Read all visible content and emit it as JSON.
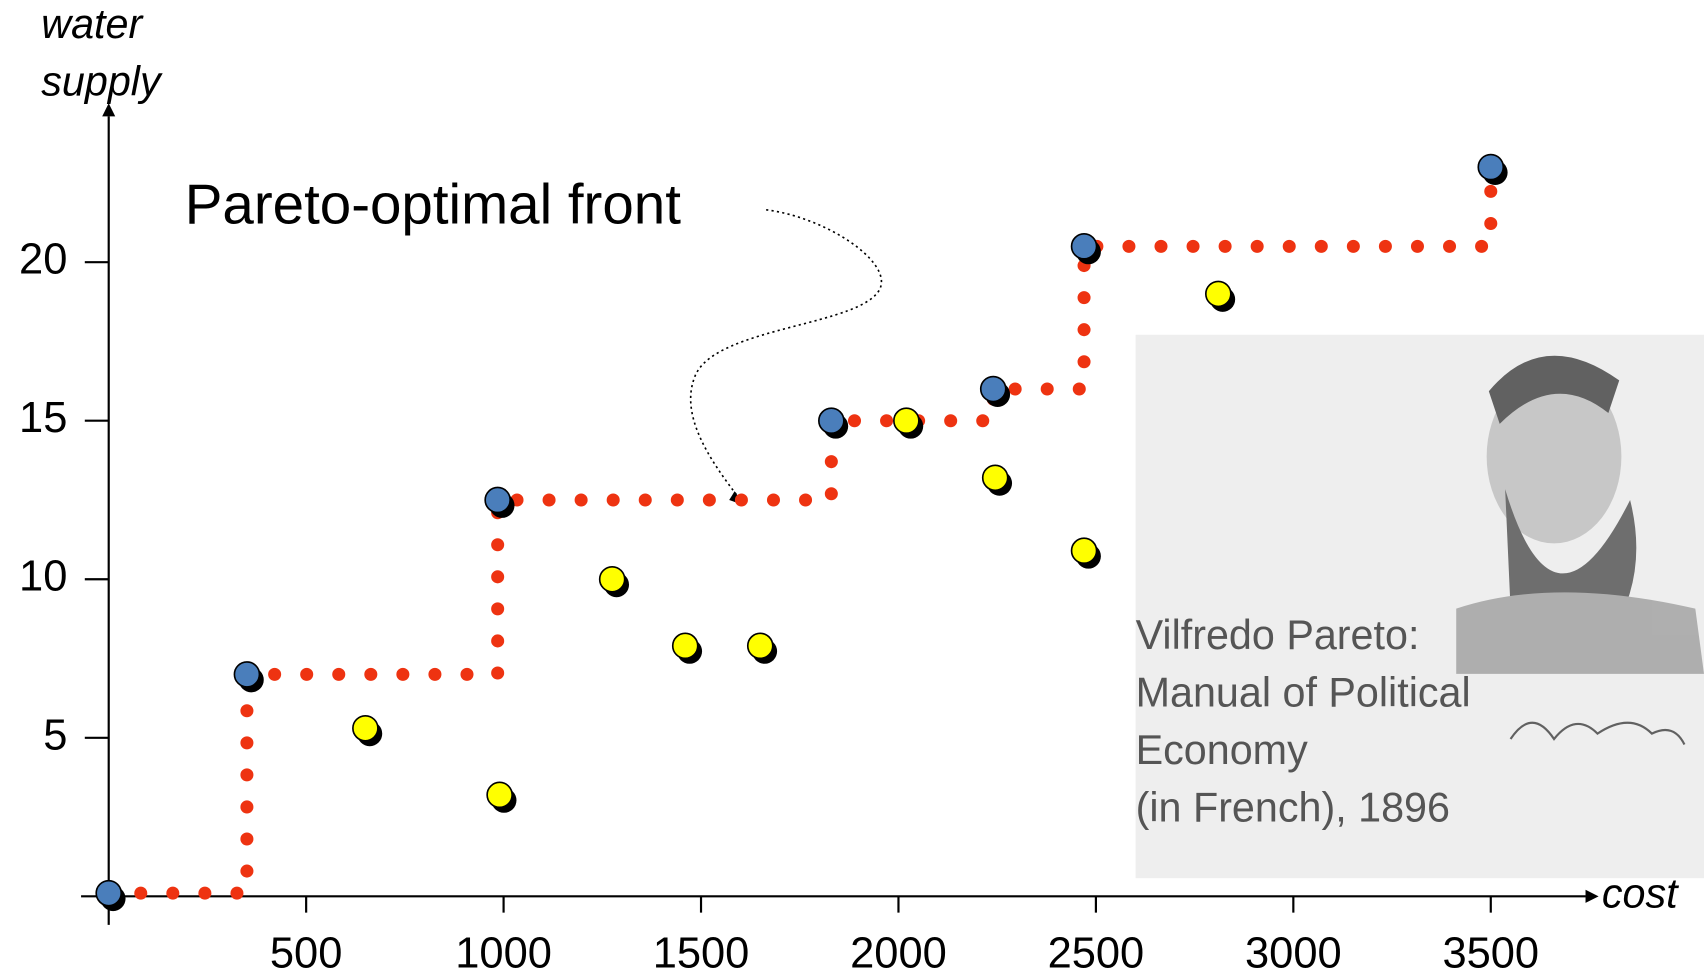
{
  "chart_data": {
    "type": "scatter",
    "xlabel": "cost",
    "ylabel": [
      "water",
      "supply"
    ],
    "xlim": [
      -70,
      3740
    ],
    "ylim": [
      -0.9,
      24.6
    ],
    "xticks": [
      500,
      1000,
      1500,
      2000,
      2500,
      3000,
      3500
    ],
    "yticks": [
      5,
      10,
      15,
      20
    ],
    "series": [
      {
        "color": "#4a7ebb",
        "pareto": true,
        "x": [
          0,
          350,
          985,
          1830,
          2240,
          2470,
          3500
        ],
        "values": [
          0.1,
          7,
          12.5,
          15,
          16,
          20.5,
          23
        ]
      },
      {
        "color": "#ffff00",
        "pareto": false,
        "x": [
          650,
          990,
          1275,
          1460,
          1650,
          2020,
          2245,
          2470,
          2810
        ],
        "values": [
          5.3,
          3.2,
          10,
          7.9,
          7.9,
          15,
          13.2,
          10.9,
          19
        ]
      }
    ],
    "front_color": "#ee3311",
    "annotation": "Pareto-optimal front",
    "inset_text": [
      "Vilfredo Pareto:",
      "Manual of Political",
      "Economy",
      "(in French), 1896"
    ]
  }
}
